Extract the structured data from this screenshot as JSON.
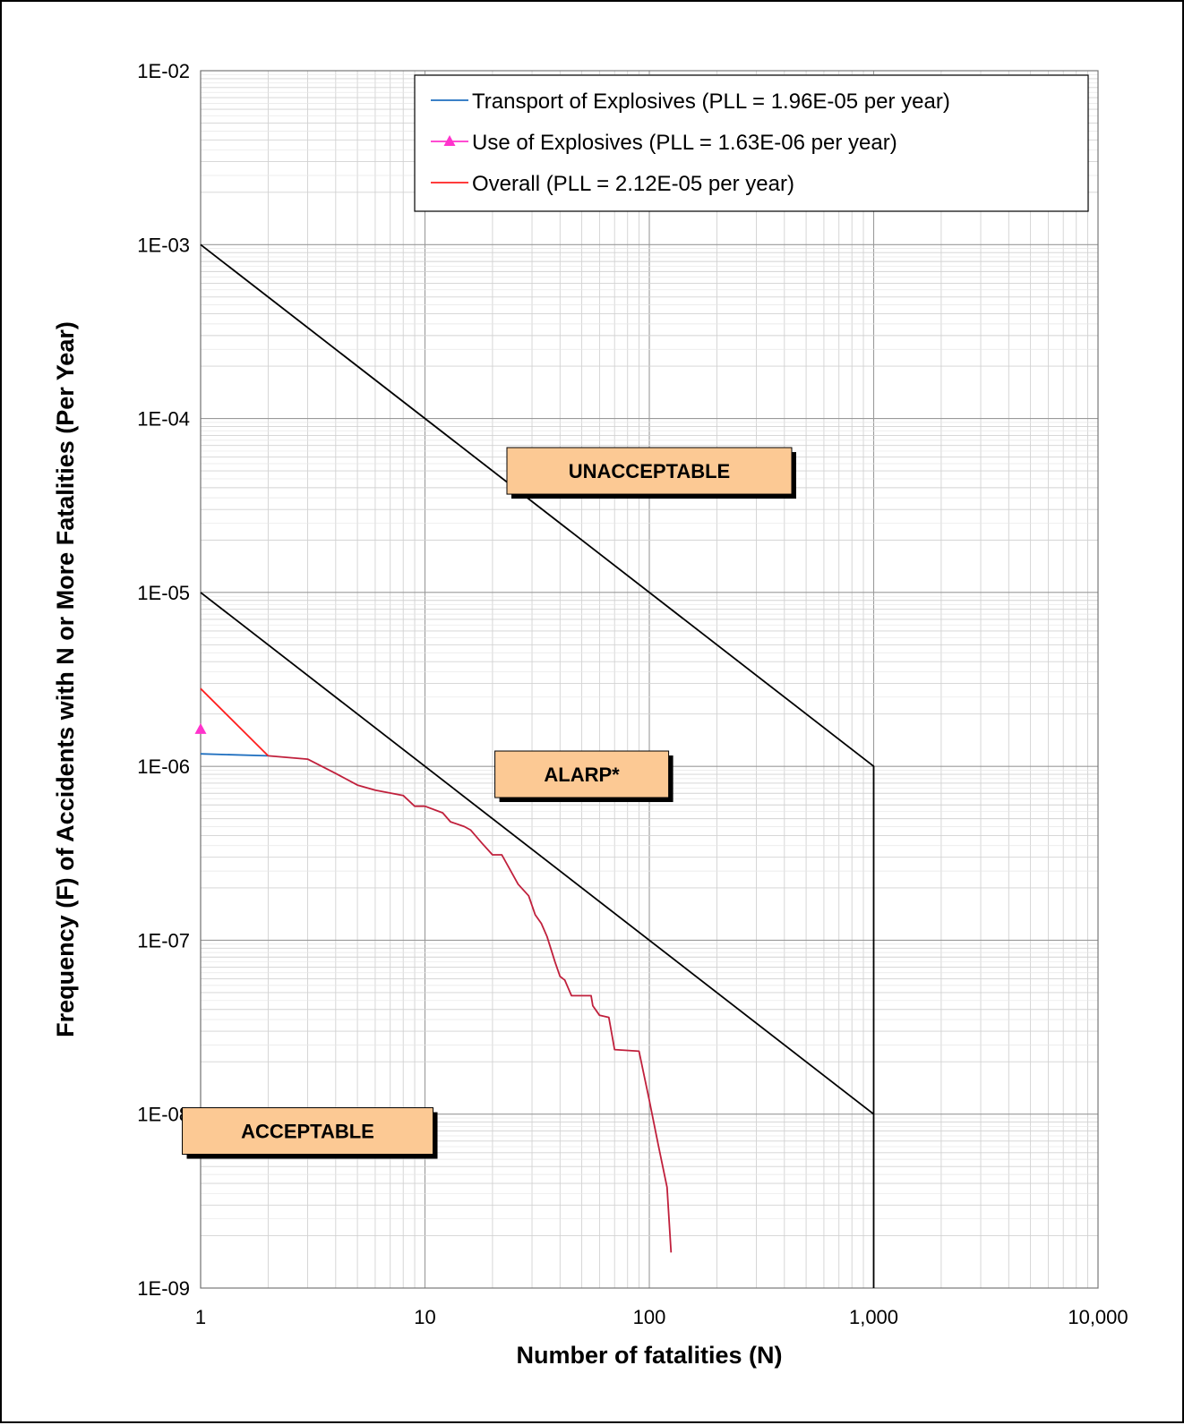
{
  "chart_data": {
    "type": "line",
    "xscale": "log",
    "yscale": "log",
    "xlim": [
      1,
      10000
    ],
    "ylim": [
      1e-09,
      0.01
    ],
    "grid": true,
    "legend_position": "top-right",
    "xlabel": "Number of fatalities (N)",
    "ylabel": "Frequency (F) of Accidents with N or More Fatalities (Per Year)",
    "x_ticks": [
      {
        "value": 1,
        "label": "1"
      },
      {
        "value": 10,
        "label": "10"
      },
      {
        "value": 100,
        "label": "100"
      },
      {
        "value": 1000,
        "label": "1,000"
      },
      {
        "value": 10000,
        "label": "10,000"
      }
    ],
    "y_ticks": [
      {
        "value": 0.01,
        "label": "1E-02"
      },
      {
        "value": 0.001,
        "label": "1E-03"
      },
      {
        "value": 0.0001,
        "label": "1E-04"
      },
      {
        "value": 1e-05,
        "label": "1E-05"
      },
      {
        "value": 1e-06,
        "label": "1E-06"
      },
      {
        "value": 1e-07,
        "label": "1E-07"
      },
      {
        "value": 1e-08,
        "label": "1E-08"
      },
      {
        "value": 1e-09,
        "label": "1E-09"
      }
    ],
    "series": [
      {
        "name": "Transport of Explosives (PLL = 1.96E-05  per year)",
        "color": "#1f6fbf",
        "marker": "none",
        "x": [
          1,
          2
        ],
        "y": [
          1.18e-06,
          1.15e-06
        ]
      },
      {
        "name": "Use of Explosives (PLL =  1.63E-06 per year)",
        "color": "#ff33cc",
        "marker": "triangle",
        "x": [
          1
        ],
        "y": [
          1.63e-06
        ]
      },
      {
        "name": "Overall (PLL =  2.12E-05 per year)",
        "color": "#ff2020",
        "marker": "none",
        "x": [
          1,
          2
        ],
        "y": [
          2.8e-06,
          1.15e-06
        ]
      },
      {
        "name": "",
        "color": "#c0203c",
        "marker": "none",
        "x": [
          2,
          3,
          4,
          5,
          6,
          8,
          9,
          10,
          12,
          13,
          15,
          16,
          18,
          20,
          22,
          26,
          29,
          31,
          33,
          35,
          38,
          40,
          42,
          45,
          50,
          55,
          56,
          60,
          66,
          70,
          90,
          100,
          110,
          120,
          125
        ],
        "y": [
          1.15e-06,
          1.1e-06,
          9.1e-07,
          7.8e-07,
          7.3e-07,
          6.8e-07,
          5.9e-07,
          5.9e-07,
          5.4e-07,
          4.8e-07,
          4.5e-07,
          4.3e-07,
          3.6e-07,
          3.1e-07,
          3.1e-07,
          2.1e-07,
          1.8e-07,
          1.4e-07,
          1.25e-07,
          1.05e-07,
          7.5e-08,
          6.2e-08,
          5.9e-08,
          4.8e-08,
          4.8e-08,
          4.8e-08,
          4.2e-08,
          3.7e-08,
          3.6e-08,
          2.35e-08,
          2.3e-08,
          1.2e-08,
          6.5e-09,
          3.8e-09,
          1.6e-09
        ]
      },
      {
        "name": "",
        "color": "#000000",
        "marker": "none",
        "x": [
          1,
          1000,
          1000
        ],
        "y": [
          0.001,
          1e-06,
          1e-09
        ]
      },
      {
        "name": "",
        "color": "#000000",
        "marker": "none",
        "x": [
          1,
          1000
        ],
        "y": [
          1e-05,
          1e-08
        ]
      }
    ],
    "annotations": [
      {
        "text": "UNACCEPTABLE",
        "x": 100,
        "y": 5e-05
      },
      {
        "text": "ALARP*",
        "x": 50,
        "y": 9e-07
      },
      {
        "text": "ACCEPTABLE",
        "x": 3,
        "y": 8e-09
      }
    ]
  }
}
